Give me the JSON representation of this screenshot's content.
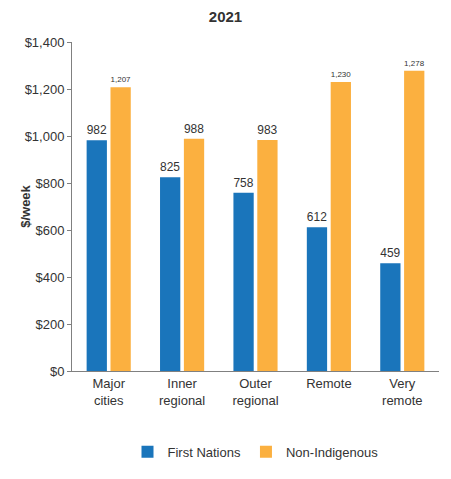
{
  "chart_data": {
    "type": "bar",
    "title": "2021",
    "y_label": "$/week",
    "categories": [
      "Major cities",
      "Inner regional",
      "Outer regional",
      "Remote",
      "Very remote"
    ],
    "series": [
      {
        "name": "First Nations",
        "color": "#1a75bb",
        "values": [
          982,
          825,
          758,
          612,
          459
        ],
        "value_labels": [
          "982",
          "825",
          "758",
          "612",
          "459"
        ]
      },
      {
        "name": "Non-Indigenous",
        "color": "#fbb040",
        "values": [
          1207,
          988,
          983,
          1230,
          1278
        ],
        "value_labels": [
          "1,207",
          "988",
          "983",
          "1,230",
          "1,278"
        ]
      }
    ],
    "ylim": [
      0,
      1400
    ],
    "yticks": [
      {
        "value": 0,
        "label": "$0"
      },
      {
        "value": 200,
        "label": "$200"
      },
      {
        "value": 400,
        "label": "$400"
      },
      {
        "value": 600,
        "label": "$600"
      },
      {
        "value": 800,
        "label": "$800"
      },
      {
        "value": 1000,
        "label": "$1,000"
      },
      {
        "value": 1200,
        "label": "$1,200"
      },
      {
        "value": 1400,
        "label": "$1,400"
      }
    ],
    "grid": false,
    "legend": "bottom",
    "data_labels": true
  }
}
